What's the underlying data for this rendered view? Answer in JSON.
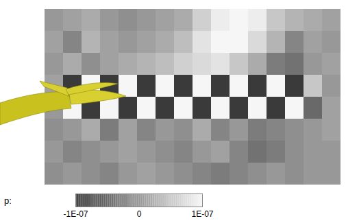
{
  "chart_data": {
    "type": "heatmap",
    "tick_labels": false,
    "cells": [
      [
        0,
        1e-08,
        2e-08,
        0,
        -1e-08,
        0,
        1e-08,
        2e-08,
        6e-08,
        9e-08,
        1e-07,
        9e-08,
        5e-08,
        3e-08,
        2e-08,
        1e-08
      ],
      [
        1e-08,
        -2e-08,
        3e-08,
        1e-08,
        0,
        1e-08,
        2e-08,
        4e-08,
        8e-08,
        1e-07,
        1e-07,
        7e-08,
        3e-08,
        -2e-08,
        1e-08,
        0
      ],
      [
        0,
        2e-08,
        -1e-08,
        1e-08,
        2e-08,
        3e-08,
        4e-08,
        6e-08,
        7e-08,
        8e-08,
        5e-08,
        2e-08,
        -3e-08,
        -4e-08,
        0,
        1e-08
      ],
      [
        1e-08,
        -1e-07,
        1e-07,
        -1e-07,
        1e-07,
        -1e-07,
        1e-07,
        -1e-07,
        1e-07,
        -1e-07,
        1e-07,
        -1e-07,
        1e-07,
        -1e-07,
        5e-08,
        0
      ],
      [
        0,
        1e-07,
        -1e-07,
        1e-07,
        -1e-07,
        1e-07,
        -1e-07,
        1e-07,
        -1e-07,
        1e-07,
        -1e-07,
        1e-07,
        -1e-07,
        1e-07,
        -5e-08,
        1e-08
      ],
      [
        -1e-08,
        0,
        2e-08,
        -3e-08,
        1e-08,
        -2e-08,
        0,
        -1e-08,
        2e-08,
        -2e-08,
        0,
        -3e-08,
        -2e-08,
        -1e-08,
        0,
        1e-08
      ],
      [
        0,
        -2e-08,
        -1e-08,
        0,
        1e-08,
        0,
        -1e-08,
        -2e-08,
        0,
        1e-08,
        -2e-08,
        -4e-08,
        -3e-08,
        -1e-08,
        0,
        0
      ],
      [
        -1e-08,
        0,
        -1e-08,
        -2e-08,
        0,
        1e-08,
        0,
        -1e-08,
        -2e-08,
        -3e-08,
        -2e-08,
        -1e-08,
        0,
        -1e-08,
        0,
        0
      ]
    ],
    "colorbar": {
      "label": "p:",
      "range": [
        -1e-07,
        1e-07
      ],
      "ticks": [
        {
          "value": -1e-07,
          "label": "-1E-07"
        },
        0,
        {
          "value": 1e-07,
          "label": "1E-07"
        }
      ]
    }
  }
}
